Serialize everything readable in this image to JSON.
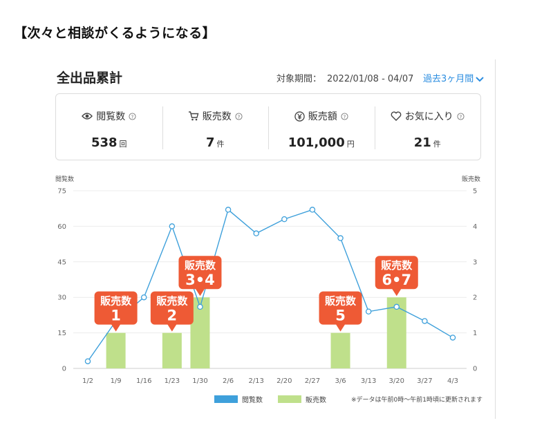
{
  "heading": "【次々と相談がくるようになる】",
  "card": {
    "title": "全出品累計",
    "period_label": "対象期間：",
    "period_value": "2022/01/08 - 04/07",
    "period_select": "過去3ヶ月間"
  },
  "stats": [
    {
      "label": "閲覧数",
      "value": "538",
      "unit": "回",
      "icon": "eye-icon"
    },
    {
      "label": "販売数",
      "value": "7",
      "unit": "件",
      "icon": "cart-icon"
    },
    {
      "label": "販売額",
      "value": "101,000",
      "unit": "円",
      "icon": "yen-icon"
    },
    {
      "label": "お気に入り",
      "value": "21",
      "unit": "件",
      "icon": "heart-icon"
    }
  ],
  "colors": {
    "line": "#3ea0db",
    "bar": "#bfe08b",
    "callout": "#ee5a35",
    "accent": "#2b8de0"
  },
  "chart_data": {
    "type": "bar",
    "categories": [
      "1/2",
      "1/9",
      "1/16",
      "1/23",
      "1/30",
      "2/6",
      "2/13",
      "2/20",
      "2/27",
      "3/6",
      "3/13",
      "3/20",
      "3/27",
      "4/3"
    ],
    "y_left_label": "閲覧数",
    "y_right_label": "販売数",
    "y_left_ticks": [
      0,
      15,
      30,
      45,
      60,
      75
    ],
    "y_right_ticks": [
      0,
      1,
      2,
      3,
      4,
      5
    ],
    "ylim_left": [
      0,
      75
    ],
    "ylim_right": [
      0,
      5
    ],
    "series": [
      {
        "name": "閲覧数",
        "type": "line",
        "axis": "left",
        "values": [
          3,
          20,
          30,
          60,
          26,
          67,
          57,
          63,
          67,
          55,
          24,
          26,
          20,
          13
        ]
      },
      {
        "name": "販売数",
        "type": "bar",
        "axis": "right",
        "values": [
          0,
          1,
          0,
          1,
          2,
          0,
          0,
          0,
          0,
          1,
          0,
          2,
          0,
          0
        ]
      }
    ],
    "annotations": [
      {
        "category": "1/9",
        "title": "販売数",
        "number": "1"
      },
      {
        "category": "1/23",
        "title": "販売数",
        "number": "2"
      },
      {
        "category": "1/30",
        "title": "販売数",
        "number": "3•4"
      },
      {
        "category": "3/6",
        "title": "販売数",
        "number": "5"
      },
      {
        "category": "3/20",
        "title": "販売数",
        "number": "6•7"
      }
    ],
    "grid": true,
    "legend": "bottom",
    "note": "※データは午前0時〜午前1時頃に更新されます"
  }
}
